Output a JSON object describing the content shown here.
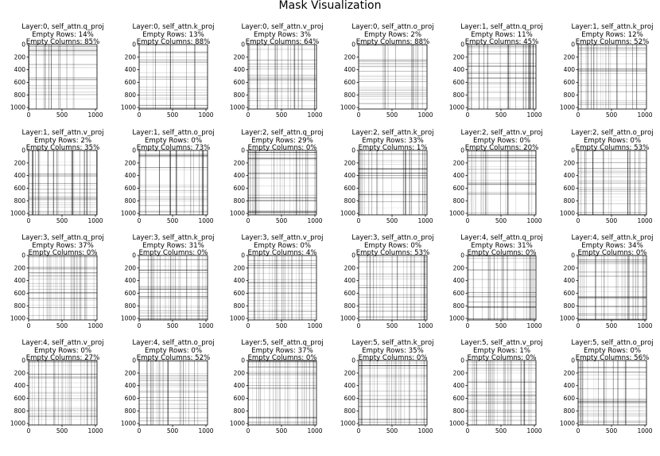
{
  "title": "Mask Visualization",
  "labels": {
    "empty_rows": "Empty Rows: ",
    "empty_columns": "Empty Columns: "
  },
  "axes": {
    "xticks": [
      "0",
      "500",
      "1000"
    ],
    "yticks": [
      "0",
      "200",
      "400",
      "600",
      "800",
      "1000"
    ],
    "xlim": [
      0,
      1024
    ],
    "ylim": [
      1024,
      0
    ]
  },
  "chart_data": [
    {
      "type": "heatmap",
      "title": "Layer:0, self_attn.q_proj",
      "empty_rows": "14%",
      "empty_columns": "85%"
    },
    {
      "type": "heatmap",
      "title": "Layer:0, self_attn.k_proj",
      "empty_rows": "13%",
      "empty_columns": "88%"
    },
    {
      "type": "heatmap",
      "title": "Layer:0, self_attn.v_proj",
      "empty_rows": "3%",
      "empty_columns": "64%"
    },
    {
      "type": "heatmap",
      "title": "Layer:0, self_attn.o_proj",
      "empty_rows": "2%",
      "empty_columns": "88%"
    },
    {
      "type": "heatmap",
      "title": "Layer:1, self_attn.q_proj",
      "empty_rows": "11%",
      "empty_columns": "45%"
    },
    {
      "type": "heatmap",
      "title": "Layer:1, self_attn.k_proj",
      "empty_rows": "12%",
      "empty_columns": "52%"
    },
    {
      "type": "heatmap",
      "title": "Layer:1, self_attn.v_proj",
      "empty_rows": "2%",
      "empty_columns": "35%"
    },
    {
      "type": "heatmap",
      "title": "Layer:1, self_attn.o_proj",
      "empty_rows": "0%",
      "empty_columns": "73%"
    },
    {
      "type": "heatmap",
      "title": "Layer:2, self_attn.q_proj",
      "empty_rows": "29%",
      "empty_columns": "0%"
    },
    {
      "type": "heatmap",
      "title": "Layer:2, self_attn.k_proj",
      "empty_rows": "33%",
      "empty_columns": "1%"
    },
    {
      "type": "heatmap",
      "title": "Layer:2, self_attn.v_proj",
      "empty_rows": "0%",
      "empty_columns": "20%"
    },
    {
      "type": "heatmap",
      "title": "Layer:2, self_attn.o_proj",
      "empty_rows": "0%",
      "empty_columns": "53%"
    },
    {
      "type": "heatmap",
      "title": "Layer:3, self_attn.q_proj",
      "empty_rows": "37%",
      "empty_columns": "0%"
    },
    {
      "type": "heatmap",
      "title": "Layer:3, self_attn.k_proj",
      "empty_rows": "31%",
      "empty_columns": "0%"
    },
    {
      "type": "heatmap",
      "title": "Layer:3, self_attn.v_proj",
      "empty_rows": "0%",
      "empty_columns": "4%"
    },
    {
      "type": "heatmap",
      "title": "Layer:3, self_attn.o_proj",
      "empty_rows": "0%",
      "empty_columns": "53%"
    },
    {
      "type": "heatmap",
      "title": "Layer:4, self_attn.q_proj",
      "empty_rows": "31%",
      "empty_columns": "0%"
    },
    {
      "type": "heatmap",
      "title": "Layer:4, self_attn.k_proj",
      "empty_rows": "34%",
      "empty_columns": "0%"
    },
    {
      "type": "heatmap",
      "title": "Layer:4, self_attn.v_proj",
      "empty_rows": "0%",
      "empty_columns": "27%"
    },
    {
      "type": "heatmap",
      "title": "Layer:4, self_attn.o_proj",
      "empty_rows": "0%",
      "empty_columns": "52%"
    },
    {
      "type": "heatmap",
      "title": "Layer:5, self_attn.q_proj",
      "empty_rows": "37%",
      "empty_columns": "0%"
    },
    {
      "type": "heatmap",
      "title": "Layer:5, self_attn.k_proj",
      "empty_rows": "35%",
      "empty_columns": "0%"
    },
    {
      "type": "heatmap",
      "title": "Layer:5, self_attn.v_proj",
      "empty_rows": "1%",
      "empty_columns": "0%"
    },
    {
      "type": "heatmap",
      "title": "Layer:5, self_attn.o_proj",
      "empty_rows": "0%",
      "empty_columns": "56%"
    }
  ]
}
